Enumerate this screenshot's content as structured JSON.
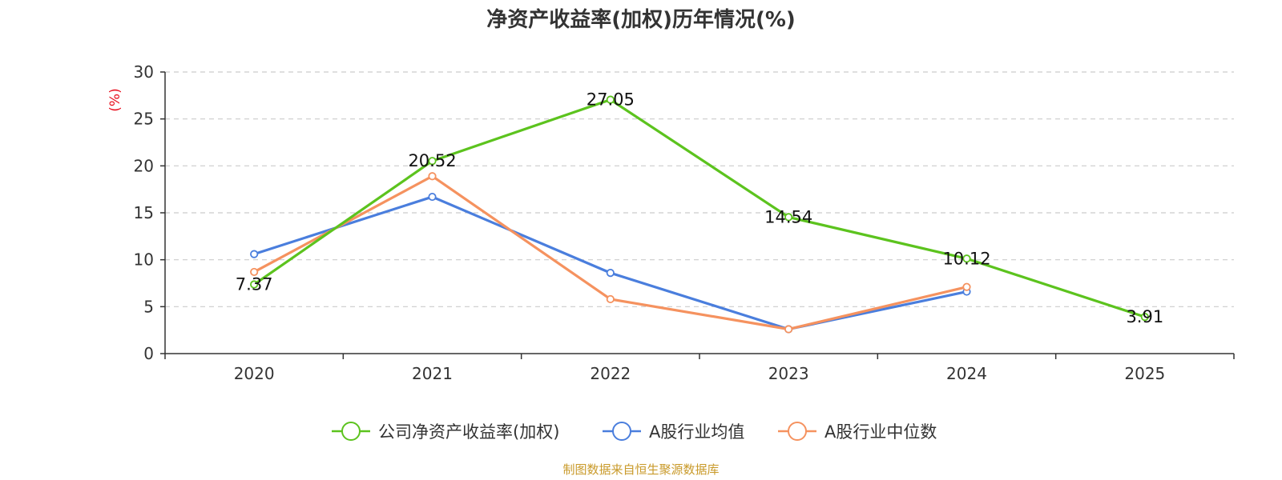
{
  "chart_data": {
    "type": "line",
    "title": "净资产收益率(加权)历年情况(%)",
    "ylabel": "(%)",
    "xlabel": "",
    "categories": [
      "2020",
      "2021",
      "2022",
      "2023",
      "2024",
      "2025"
    ],
    "ylim": [
      0,
      30
    ],
    "yticks": [
      0,
      5,
      10,
      15,
      20,
      25,
      30
    ],
    "grid": true,
    "legend_position": "bottom",
    "series": [
      {
        "name": "公司净资产收益率(加权)",
        "color": "#5cc31e",
        "values": [
          7.37,
          20.52,
          27.05,
          14.54,
          10.12,
          3.91
        ],
        "labels": [
          "7.37",
          "20.52",
          "27.05",
          "14.54",
          "10.12",
          "3.91"
        ]
      },
      {
        "name": "A股行业均值",
        "color": "#4a7edd",
        "values": [
          10.6,
          16.7,
          8.6,
          2.6,
          6.6,
          null
        ]
      },
      {
        "name": "A股行业中位数",
        "color": "#f5925f",
        "values": [
          8.7,
          18.9,
          5.8,
          2.6,
          7.1,
          null
        ]
      }
    ],
    "source": "制图数据来自恒生聚源数据库"
  }
}
